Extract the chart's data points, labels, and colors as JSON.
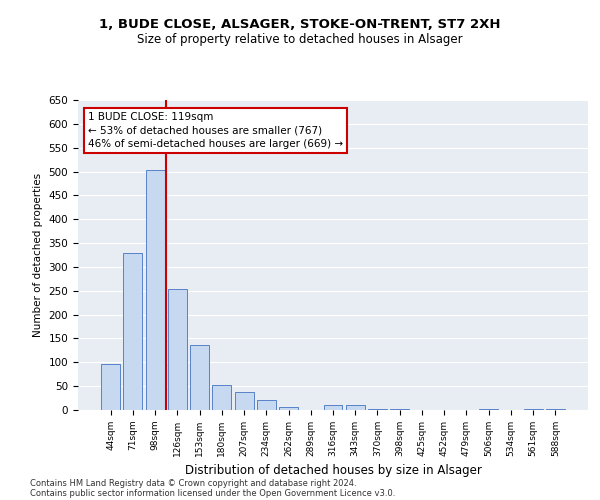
{
  "title1": "1, BUDE CLOSE, ALSAGER, STOKE-ON-TRENT, ST7 2XH",
  "title2": "Size of property relative to detached houses in Alsager",
  "xlabel": "Distribution of detached houses by size in Alsager",
  "ylabel": "Number of detached properties",
  "categories": [
    "44sqm",
    "71sqm",
    "98sqm",
    "126sqm",
    "153sqm",
    "180sqm",
    "207sqm",
    "234sqm",
    "262sqm",
    "289sqm",
    "316sqm",
    "343sqm",
    "370sqm",
    "398sqm",
    "425sqm",
    "452sqm",
    "479sqm",
    "506sqm",
    "534sqm",
    "561sqm",
    "588sqm"
  ],
  "values": [
    97,
    330,
    503,
    253,
    137,
    52,
    38,
    22,
    7,
    0,
    10,
    10,
    3,
    2,
    1,
    1,
    1,
    2,
    1,
    3,
    3
  ],
  "bar_color": "#c6d9f1",
  "bar_edge_color": "#4472c4",
  "vline_x": 2.5,
  "vline_color": "#cc0000",
  "annotation_text": "1 BUDE CLOSE: 119sqm\n← 53% of detached houses are smaller (767)\n46% of semi-detached houses are larger (669) →",
  "annotation_box_color": "#ffffff",
  "annotation_box_edge": "#cc0000",
  "ylim": [
    0,
    650
  ],
  "yticks": [
    0,
    50,
    100,
    150,
    200,
    250,
    300,
    350,
    400,
    450,
    500,
    550,
    600,
    650
  ],
  "bg_color": "#e8edf4",
  "footer1": "Contains HM Land Registry data © Crown copyright and database right 2024.",
  "footer2": "Contains public sector information licensed under the Open Government Licence v3.0."
}
